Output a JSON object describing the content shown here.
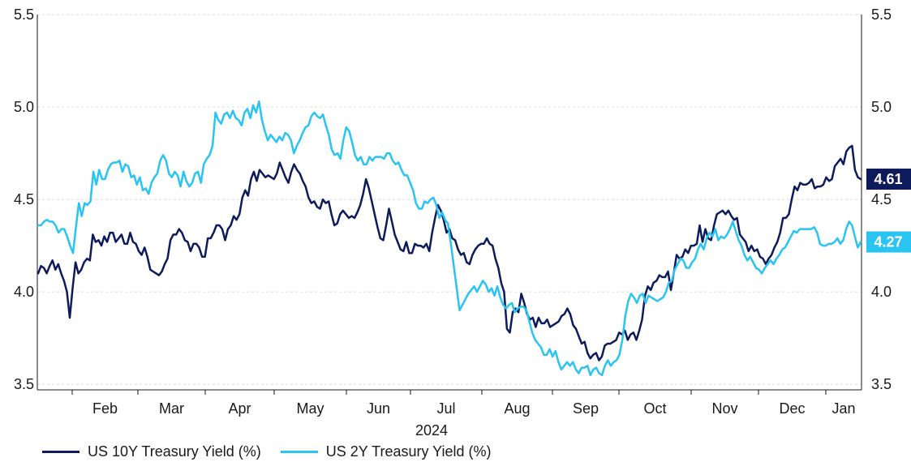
{
  "chart_data": {
    "type": "line",
    "xlabel": "2024",
    "x_ticks": [
      "Feb",
      "Mar",
      "Apr",
      "May",
      "Jun",
      "Jul",
      "Aug",
      "Sep",
      "Oct",
      "Nov",
      "Dec",
      "Jan"
    ],
    "ylim": [
      3.47,
      5.5
    ],
    "y_ticks": [
      "3.5",
      "4.0",
      "4.5",
      "5.0",
      "5.5"
    ],
    "grid": true,
    "legend_position": "bottom",
    "series": [
      {
        "name": "US 10Y Treasury Yield (%)",
        "color": "#0d1a5c",
        "end_label": "4.61",
        "values": [
          4.1,
          4.14,
          4.13,
          4.1,
          4.14,
          4.17,
          4.12,
          4.15,
          4.1,
          4.06,
          4.0,
          3.86,
          4.02,
          4.16,
          4.1,
          4.12,
          4.16,
          4.18,
          4.17,
          4.31,
          4.27,
          4.28,
          4.25,
          4.3,
          4.27,
          4.32,
          4.32,
          4.27,
          4.29,
          4.31,
          4.26,
          4.26,
          4.32,
          4.27,
          4.26,
          4.22,
          4.2,
          4.24,
          4.19,
          4.12,
          4.11,
          4.1,
          4.09,
          4.11,
          4.15,
          4.18,
          4.28,
          4.31,
          4.31,
          4.34,
          4.32,
          4.28,
          4.27,
          4.22,
          4.26,
          4.26,
          4.24,
          4.19,
          4.19,
          4.29,
          4.29,
          4.32,
          4.36,
          4.36,
          4.34,
          4.28,
          4.34,
          4.36,
          4.41,
          4.39,
          4.42,
          4.51,
          4.55,
          4.52,
          4.61,
          4.65,
          4.6,
          4.66,
          4.64,
          4.62,
          4.63,
          4.62,
          4.61,
          4.64,
          4.7,
          4.66,
          4.62,
          4.59,
          4.65,
          4.69,
          4.66,
          4.64,
          4.6,
          4.57,
          4.51,
          4.48,
          4.49,
          4.46,
          4.45,
          4.5,
          4.48,
          4.49,
          4.42,
          4.36,
          4.37,
          4.42,
          4.44,
          4.42,
          4.4,
          4.41,
          4.4,
          4.43,
          4.47,
          4.53,
          4.61,
          4.56,
          4.49,
          4.42,
          4.35,
          4.29,
          4.28,
          4.36,
          4.45,
          4.38,
          4.31,
          4.27,
          4.23,
          4.22,
          4.27,
          4.21,
          4.21,
          4.26,
          4.25,
          4.25,
          4.24,
          4.26,
          4.22,
          4.32,
          4.4,
          4.47,
          4.44,
          4.39,
          4.32,
          4.34,
          4.29,
          4.28,
          4.23,
          4.2,
          4.21,
          4.16,
          4.15,
          4.2,
          4.23,
          4.25,
          4.26,
          4.26,
          4.29,
          4.26,
          4.25,
          4.18,
          4.13,
          4.05,
          4.0,
          3.8,
          3.78,
          3.89,
          3.91,
          3.89,
          3.99,
          3.94,
          3.88,
          3.85,
          3.86,
          3.81,
          3.86,
          3.83,
          3.83,
          3.85,
          3.81,
          3.82,
          3.83,
          3.84,
          3.87,
          3.88,
          3.91,
          3.88,
          3.82,
          3.8,
          3.76,
          3.72,
          3.73,
          3.67,
          3.64,
          3.66,
          3.67,
          3.63,
          3.65,
          3.71,
          3.72,
          3.72,
          3.73,
          3.74,
          3.78,
          3.77,
          3.79,
          3.74,
          3.77,
          3.78,
          3.74,
          3.79,
          3.85,
          3.98,
          4.03,
          4.01,
          4.05,
          4.06,
          4.09,
          4.08,
          4.08,
          4.11,
          4.01,
          4.1,
          4.2,
          4.18,
          4.19,
          4.23,
          4.21,
          4.25,
          4.25,
          4.26,
          4.36,
          4.27,
          4.34,
          4.29,
          4.28,
          4.36,
          4.42,
          4.43,
          4.44,
          4.42,
          4.44,
          4.41,
          4.39,
          4.4,
          4.31,
          4.29,
          4.27,
          4.22,
          4.25,
          4.22,
          4.23,
          4.19,
          4.18,
          4.15,
          4.18,
          4.2,
          4.24,
          4.27,
          4.32,
          4.4,
          4.4,
          4.42,
          4.5,
          4.57,
          4.55,
          4.59,
          4.58,
          4.58,
          4.59,
          4.61,
          4.56,
          4.57,
          4.57,
          4.58,
          4.62,
          4.6,
          4.61,
          4.68,
          4.7,
          4.72,
          4.69,
          4.76,
          4.78,
          4.79,
          4.66,
          4.62,
          4.61
        ]
      },
      {
        "name": "US 2Y Treasury Yield (%)",
        "color": "#29c4f2",
        "end_label": "4.27",
        "values": [
          4.36,
          4.36,
          4.38,
          4.39,
          4.38,
          4.38,
          4.36,
          4.32,
          4.34,
          4.34,
          4.3,
          4.25,
          4.21,
          4.35,
          4.48,
          4.41,
          4.48,
          4.47,
          4.49,
          4.65,
          4.58,
          4.66,
          4.61,
          4.61,
          4.66,
          4.69,
          4.7,
          4.7,
          4.71,
          4.65,
          4.69,
          4.68,
          4.62,
          4.63,
          4.58,
          4.62,
          4.55,
          4.56,
          4.53,
          4.59,
          4.62,
          4.64,
          4.71,
          4.74,
          4.71,
          4.64,
          4.62,
          4.65,
          4.63,
          4.57,
          4.65,
          4.6,
          4.57,
          4.59,
          4.64,
          4.65,
          4.59,
          4.69,
          4.72,
          4.74,
          4.79,
          4.97,
          4.93,
          4.91,
          4.96,
          4.97,
          4.94,
          4.98,
          4.94,
          4.93,
          4.9,
          4.97,
          4.99,
          4.94,
          5.01,
          4.97,
          5.03,
          4.93,
          4.87,
          4.82,
          4.85,
          4.83,
          4.81,
          4.84,
          4.82,
          4.86,
          4.85,
          4.82,
          4.75,
          4.79,
          4.82,
          4.86,
          4.89,
          4.9,
          4.95,
          4.97,
          4.95,
          4.94,
          4.96,
          4.9,
          4.85,
          4.77,
          4.74,
          4.75,
          4.72,
          4.82,
          4.89,
          4.87,
          4.81,
          4.74,
          4.71,
          4.73,
          4.69,
          4.69,
          4.73,
          4.71,
          4.73,
          4.73,
          4.73,
          4.72,
          4.75,
          4.75,
          4.71,
          4.69,
          4.7,
          4.66,
          4.63,
          4.63,
          4.59,
          4.55,
          4.48,
          4.45,
          4.45,
          4.49,
          4.48,
          4.5,
          4.51,
          4.47,
          4.4,
          4.43,
          4.39,
          4.37,
          4.26,
          4.14,
          4.02,
          3.9,
          3.93,
          3.96,
          3.99,
          4.01,
          4.03,
          4.0,
          4.03,
          4.06,
          4.04,
          4.0,
          4.02,
          3.98,
          4.03,
          3.97,
          3.93,
          3.91,
          3.93,
          3.94,
          3.89,
          3.91,
          3.92,
          3.92,
          3.9,
          3.84,
          3.78,
          3.74,
          3.72,
          3.7,
          3.66,
          3.66,
          3.69,
          3.65,
          3.68,
          3.62,
          3.58,
          3.6,
          3.62,
          3.6,
          3.62,
          3.58,
          3.56,
          3.59,
          3.59,
          3.6,
          3.55,
          3.58,
          3.59,
          3.56,
          3.55,
          3.6,
          3.63,
          3.6,
          3.62,
          3.63,
          3.66,
          3.74,
          3.87,
          3.95,
          3.99,
          3.97,
          3.94,
          3.98,
          3.99,
          3.94,
          3.98,
          3.97,
          3.96,
          3.95,
          3.96,
          3.97,
          4.0,
          4.05,
          4.06,
          4.12,
          4.15,
          4.18,
          4.17,
          4.13,
          4.13,
          4.16,
          4.18,
          4.23,
          4.26,
          4.23,
          4.29,
          4.32,
          4.3,
          4.34,
          4.28,
          4.3,
          4.29,
          4.31,
          4.34,
          4.38,
          4.33,
          4.28,
          4.25,
          4.2,
          4.17,
          4.19,
          4.16,
          4.13,
          4.12,
          4.1,
          4.13,
          4.15,
          4.17,
          4.15,
          4.18,
          4.2,
          4.23,
          4.24,
          4.27,
          4.3,
          4.33,
          4.32,
          4.34,
          4.34,
          4.34,
          4.34,
          4.34,
          4.35,
          4.32,
          4.26,
          4.25,
          4.25,
          4.26,
          4.26,
          4.27,
          4.29,
          4.26,
          4.28,
          4.34,
          4.38,
          4.36,
          4.3,
          4.24,
          4.27
        ]
      }
    ]
  }
}
